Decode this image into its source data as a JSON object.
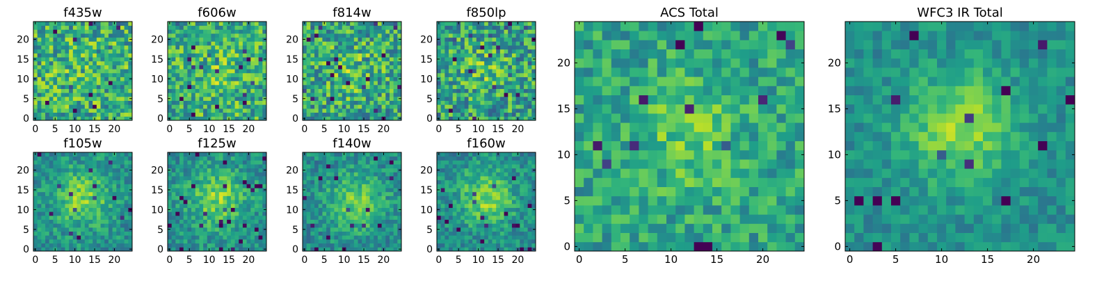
{
  "chart_data": [
    {
      "type": "heatmap",
      "title": "f435w",
      "size": 25,
      "cmap": "viridis",
      "seed": 11,
      "center": [
        12,
        12
      ],
      "sigma": 6,
      "amp": 0.05,
      "noise": 0.28,
      "base": 0.62,
      "xticks": [
        0,
        5,
        10,
        15,
        20
      ],
      "yticks": [
        0,
        5,
        10,
        15,
        20
      ],
      "xlim": [
        0,
        24
      ],
      "ylim": [
        0,
        24
      ]
    },
    {
      "type": "heatmap",
      "title": "f606w",
      "size": 25,
      "cmap": "viridis",
      "seed": 23,
      "center": [
        12,
        12
      ],
      "sigma": 5,
      "amp": 0.1,
      "noise": 0.26,
      "base": 0.62,
      "xticks": [
        0,
        5,
        10,
        15,
        20
      ],
      "yticks": [
        0,
        5,
        10,
        15,
        20
      ],
      "xlim": [
        0,
        24
      ],
      "ylim": [
        0,
        24
      ]
    },
    {
      "type": "heatmap",
      "title": "f814w",
      "size": 25,
      "cmap": "viridis",
      "seed": 37,
      "center": [
        12,
        12
      ],
      "sigma": 5,
      "amp": 0.12,
      "noise": 0.28,
      "base": 0.58,
      "xticks": [
        0,
        5,
        10,
        15,
        20
      ],
      "yticks": [
        0,
        5,
        10,
        15,
        20
      ],
      "xlim": [
        0,
        24
      ],
      "ylim": [
        0,
        24
      ]
    },
    {
      "type": "heatmap",
      "title": "f850lp",
      "size": 25,
      "cmap": "viridis",
      "seed": 41,
      "center": [
        12,
        12
      ],
      "sigma": 5,
      "amp": 0.12,
      "noise": 0.28,
      "base": 0.56,
      "xticks": [
        0,
        5,
        10,
        15,
        20
      ],
      "yticks": [
        0,
        5,
        10,
        15,
        20
      ],
      "xlim": [
        0,
        24
      ],
      "ylim": [
        0,
        24
      ]
    },
    {
      "type": "heatmap",
      "title": "f105w",
      "size": 25,
      "cmap": "viridis",
      "seed": 53,
      "center": [
        12,
        13
      ],
      "sigma": 5,
      "amp": 0.3,
      "noise": 0.16,
      "base": 0.5,
      "xticks": [
        0,
        5,
        10,
        15,
        20
      ],
      "yticks": [
        0,
        5,
        10,
        15,
        20
      ],
      "xlim": [
        0,
        24
      ],
      "ylim": [
        0,
        24
      ]
    },
    {
      "type": "heatmap",
      "title": "f125w",
      "size": 25,
      "cmap": "viridis",
      "seed": 67,
      "center": [
        12,
        13
      ],
      "sigma": 5,
      "amp": 0.3,
      "noise": 0.16,
      "base": 0.5,
      "xticks": [
        0,
        5,
        10,
        15,
        20
      ],
      "yticks": [
        0,
        5,
        10,
        15,
        20
      ],
      "xlim": [
        0,
        24
      ],
      "ylim": [
        0,
        24
      ]
    },
    {
      "type": "heatmap",
      "title": "f140w",
      "size": 25,
      "cmap": "viridis",
      "seed": 79,
      "center": [
        13,
        12
      ],
      "sigma": 5,
      "amp": 0.3,
      "noise": 0.16,
      "base": 0.48,
      "xticks": [
        0,
        5,
        10,
        15,
        20
      ],
      "yticks": [
        0,
        5,
        10,
        15,
        20
      ],
      "xlim": [
        0,
        24
      ],
      "ylim": [
        0,
        24
      ]
    },
    {
      "type": "heatmap",
      "title": "f160w",
      "size": 25,
      "cmap": "viridis",
      "seed": 83,
      "center": [
        12,
        13
      ],
      "sigma": 5,
      "amp": 0.32,
      "noise": 0.16,
      "base": 0.48,
      "xticks": [
        0,
        5,
        10,
        15,
        20
      ],
      "yticks": [
        0,
        5,
        10,
        15,
        20
      ],
      "xlim": [
        0,
        24
      ],
      "ylim": [
        0,
        24
      ]
    },
    {
      "type": "heatmap",
      "title": "ACS Total",
      "size": 25,
      "cmap": "viridis",
      "seed": 97,
      "center": [
        12,
        12
      ],
      "sigma": 4,
      "amp": 0.18,
      "noise": 0.18,
      "base": 0.58,
      "xticks": [
        0,
        5,
        10,
        15,
        20
      ],
      "yticks": [
        0,
        5,
        10,
        15,
        20
      ],
      "xlim": [
        0,
        24
      ],
      "ylim": [
        0,
        24
      ]
    },
    {
      "type": "heatmap",
      "title": "WFC3 IR Total",
      "size": 25,
      "cmap": "viridis",
      "seed": 103,
      "center": [
        12,
        13
      ],
      "sigma": 4,
      "amp": 0.35,
      "noise": 0.12,
      "base": 0.5,
      "xticks": [
        0,
        5,
        10,
        15,
        20
      ],
      "yticks": [
        0,
        5,
        10,
        15,
        20
      ],
      "xlim": [
        0,
        24
      ],
      "ylim": [
        0,
        24
      ]
    }
  ]
}
